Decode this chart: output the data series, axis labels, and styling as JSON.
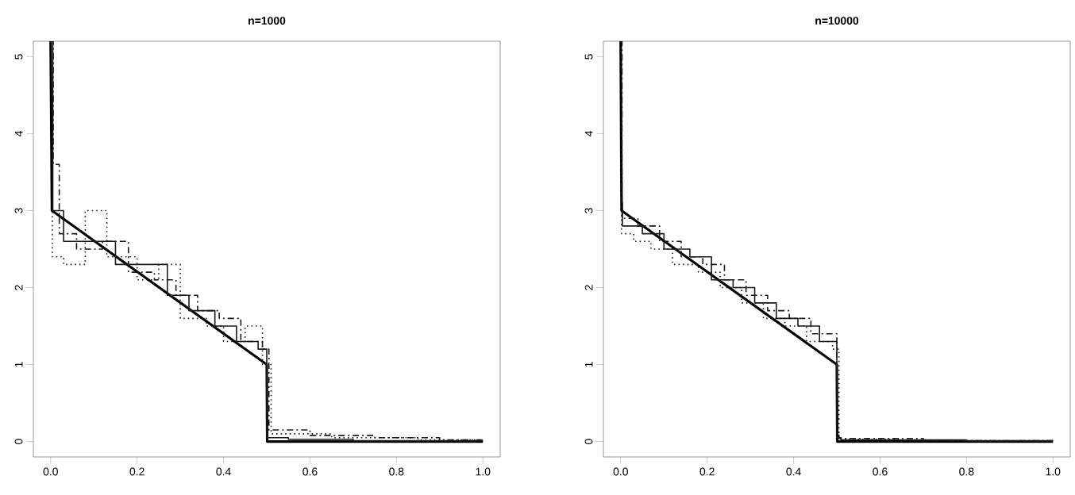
{
  "chart_data": [
    {
      "type": "line",
      "title": "n=1000",
      "xlim": [
        -0.04,
        1.04
      ],
      "ylim": [
        -0.2,
        5.2
      ],
      "xticks": [
        {
          "value": 0,
          "label": "0.0"
        },
        {
          "value": 0.2,
          "label": "0.2"
        },
        {
          "value": 0.4,
          "label": "0.4"
        },
        {
          "value": 0.6,
          "label": "0.6"
        },
        {
          "value": 0.8,
          "label": "0.8"
        },
        {
          "value": 1,
          "label": "1.0"
        }
      ],
      "yticks": [
        0,
        1,
        2,
        3,
        4,
        5
      ],
      "series": [
        {
          "color": "#000000",
          "line_style": "solid",
          "x": [
            0,
            0.003,
            0.5,
            0.501,
            1
          ],
          "values": [
            5.2,
            3,
            1,
            0,
            0
          ]
        },
        {
          "type": "step",
          "color": "#1a1a1a",
          "line_style": "dashed",
          "x": [
            0,
            0.006,
            0.02,
            0.06,
            0.12,
            0.18,
            0.24,
            0.29,
            0.34,
            0.39,
            0.44,
            0.49,
            0.505,
            0.6,
            0.75,
            0.9,
            1.0
          ],
          "values": [
            5.2,
            3.6,
            2.7,
            2.5,
            2.6,
            2.2,
            2.1,
            1.9,
            1.7,
            1.6,
            1.3,
            1.2,
            0.15,
            0.08,
            0.05,
            0.02,
            0.02
          ]
        },
        {
          "type": "step",
          "color": "#1a1a1a",
          "line_style": "dotted",
          "x": [
            0,
            0.004,
            0.03,
            0.08,
            0.13,
            0.2,
            0.25,
            0.3,
            0.36,
            0.4,
            0.45,
            0.49,
            0.51,
            0.65,
            0.85,
            1.0
          ],
          "values": [
            4.4,
            2.4,
            2.3,
            3.0,
            2.4,
            2.1,
            2.3,
            1.6,
            1.5,
            1.3,
            1.5,
            1.0,
            0.1,
            0.05,
            0.02,
            0.02
          ]
        },
        {
          "type": "step",
          "color": "#1a1a1a",
          "line_style": "solid",
          "x": [
            0,
            0.005,
            0.03,
            0.1,
            0.15,
            0.22,
            0.27,
            0.32,
            0.38,
            0.43,
            0.48,
            0.5,
            0.55,
            0.7,
            1.0
          ],
          "values": [
            5.2,
            3.0,
            2.6,
            2.6,
            2.3,
            2.3,
            1.9,
            1.7,
            1.5,
            1.3,
            1.2,
            0.05,
            0.03,
            0.01,
            0.01
          ]
        }
      ]
    },
    {
      "type": "line",
      "title": "n=10000",
      "xlim": [
        -0.04,
        1.04
      ],
      "ylim": [
        -0.2,
        5.2
      ],
      "xticks": [
        {
          "value": 0,
          "label": "0.0"
        },
        {
          "value": 0.2,
          "label": "0.2"
        },
        {
          "value": 0.4,
          "label": "0.4"
        },
        {
          "value": 0.6,
          "label": "0.6"
        },
        {
          "value": 0.8,
          "label": "0.8"
        },
        {
          "value": 1,
          "label": "1.0"
        }
      ],
      "yticks": [
        0,
        1,
        2,
        3,
        4,
        5
      ],
      "series": [
        {
          "color": "#000000",
          "line_style": "solid",
          "x": [
            0,
            0.002,
            0.5,
            0.501,
            1
          ],
          "values": [
            5.2,
            3,
            1,
            0,
            0
          ]
        },
        {
          "type": "step",
          "color": "#1a1a1a",
          "line_style": "dashed",
          "x": [
            0,
            0.003,
            0.04,
            0.09,
            0.14,
            0.19,
            0.24,
            0.29,
            0.34,
            0.39,
            0.44,
            0.5,
            0.505,
            0.7,
            1.0
          ],
          "values": [
            5.2,
            2.9,
            2.8,
            2.6,
            2.4,
            2.3,
            2.1,
            1.9,
            1.7,
            1.6,
            1.4,
            0.08,
            0.04,
            0.01,
            0.01
          ]
        },
        {
          "type": "step",
          "color": "#1a1a1a",
          "line_style": "dotted",
          "x": [
            0,
            0.002,
            0.03,
            0.07,
            0.12,
            0.18,
            0.23,
            0.28,
            0.33,
            0.38,
            0.43,
            0.49,
            0.505,
            0.65,
            1.0
          ],
          "values": [
            5.0,
            2.7,
            2.6,
            2.5,
            2.3,
            2.2,
            2.0,
            1.8,
            1.6,
            1.5,
            1.3,
            1.2,
            0.03,
            0.01,
            0.01
          ]
        },
        {
          "type": "step",
          "color": "#1a1a1a",
          "line_style": "solid",
          "x": [
            0,
            0.004,
            0.05,
            0.1,
            0.16,
            0.21,
            0.26,
            0.31,
            0.36,
            0.41,
            0.46,
            0.5,
            0.51,
            0.8,
            1.0
          ],
          "values": [
            3.1,
            2.8,
            2.7,
            2.5,
            2.4,
            2.1,
            2.0,
            1.8,
            1.6,
            1.5,
            1.3,
            0.05,
            0.02,
            0.01,
            0.01
          ]
        }
      ]
    }
  ]
}
